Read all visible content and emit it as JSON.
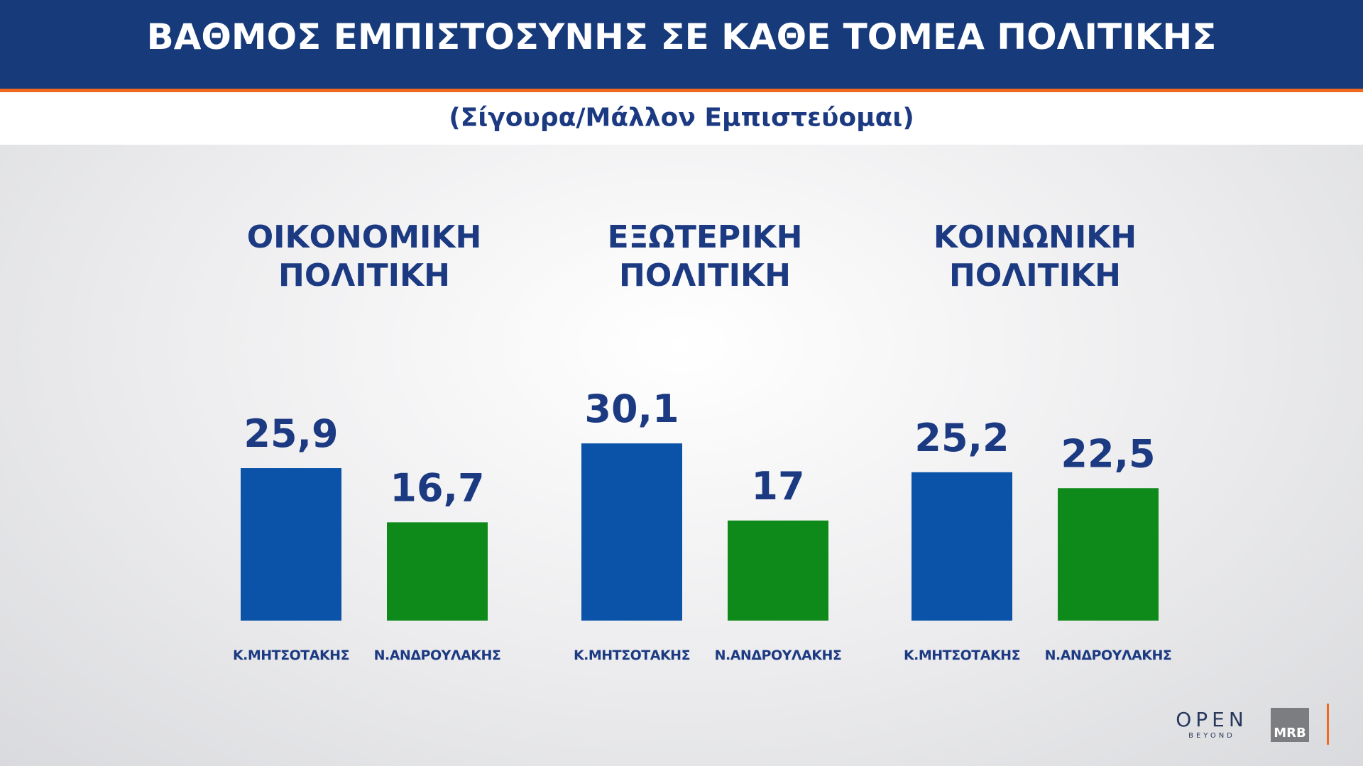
{
  "header": {
    "title": "ΒΑΘΜΟΣ ΕΜΠΙΣΤΟΣΥΝΗΣ ΣΕ ΚΑΘΕ ΤΟΜΕΑ ΠΟΛΙΤΙΚΗΣ",
    "subtitle": "(Σίγουρα/Μάλλον Εμπιστεύομαι)"
  },
  "logos": {
    "open": "OPEN",
    "open_tagline": "BEYOND",
    "mrb": "MRB"
  },
  "chart_data": [
    {
      "type": "bar",
      "title": "ΟΙΚΟΝΟΜΙΚΗ ΠΟΛΙΤΙΚΗ",
      "categories": [
        "Κ.ΜΗΤΣΟΤΑΚΗΣ",
        "Ν.ΑΝΔΡΟΥΛΑΚΗΣ"
      ],
      "values": [
        25.9,
        16.7
      ],
      "value_labels": [
        "25,9",
        "16,7"
      ],
      "colors": [
        "#0a53a8",
        "#0e8a1a"
      ],
      "ylim": [
        0,
        40
      ]
    },
    {
      "type": "bar",
      "title": "ΕΞΩΤΕΡΙΚΗ ΠΟΛΙΤΙΚΗ",
      "categories": [
        "Κ.ΜΗΤΣΟΤΑΚΗΣ",
        "Ν.ΑΝΔΡΟΥΛΑΚΗΣ"
      ],
      "values": [
        30.1,
        17
      ],
      "value_labels": [
        "30,1",
        "17"
      ],
      "colors": [
        "#0a53a8",
        "#0e8a1a"
      ],
      "ylim": [
        0,
        40
      ]
    },
    {
      "type": "bar",
      "title": "ΚΟΙΝΩΝΙΚΗ ΠΟΛΙΤΙΚΗ",
      "categories": [
        "Κ.ΜΗΤΣΟΤΑΚΗΣ",
        "Ν.ΑΝΔΡΟΥΛΑΚΗΣ"
      ],
      "values": [
        25.2,
        22.5
      ],
      "value_labels": [
        "25,2",
        "22,5"
      ],
      "colors": [
        "#0a53a8",
        "#0e8a1a"
      ],
      "ylim": [
        0,
        40
      ]
    }
  ]
}
